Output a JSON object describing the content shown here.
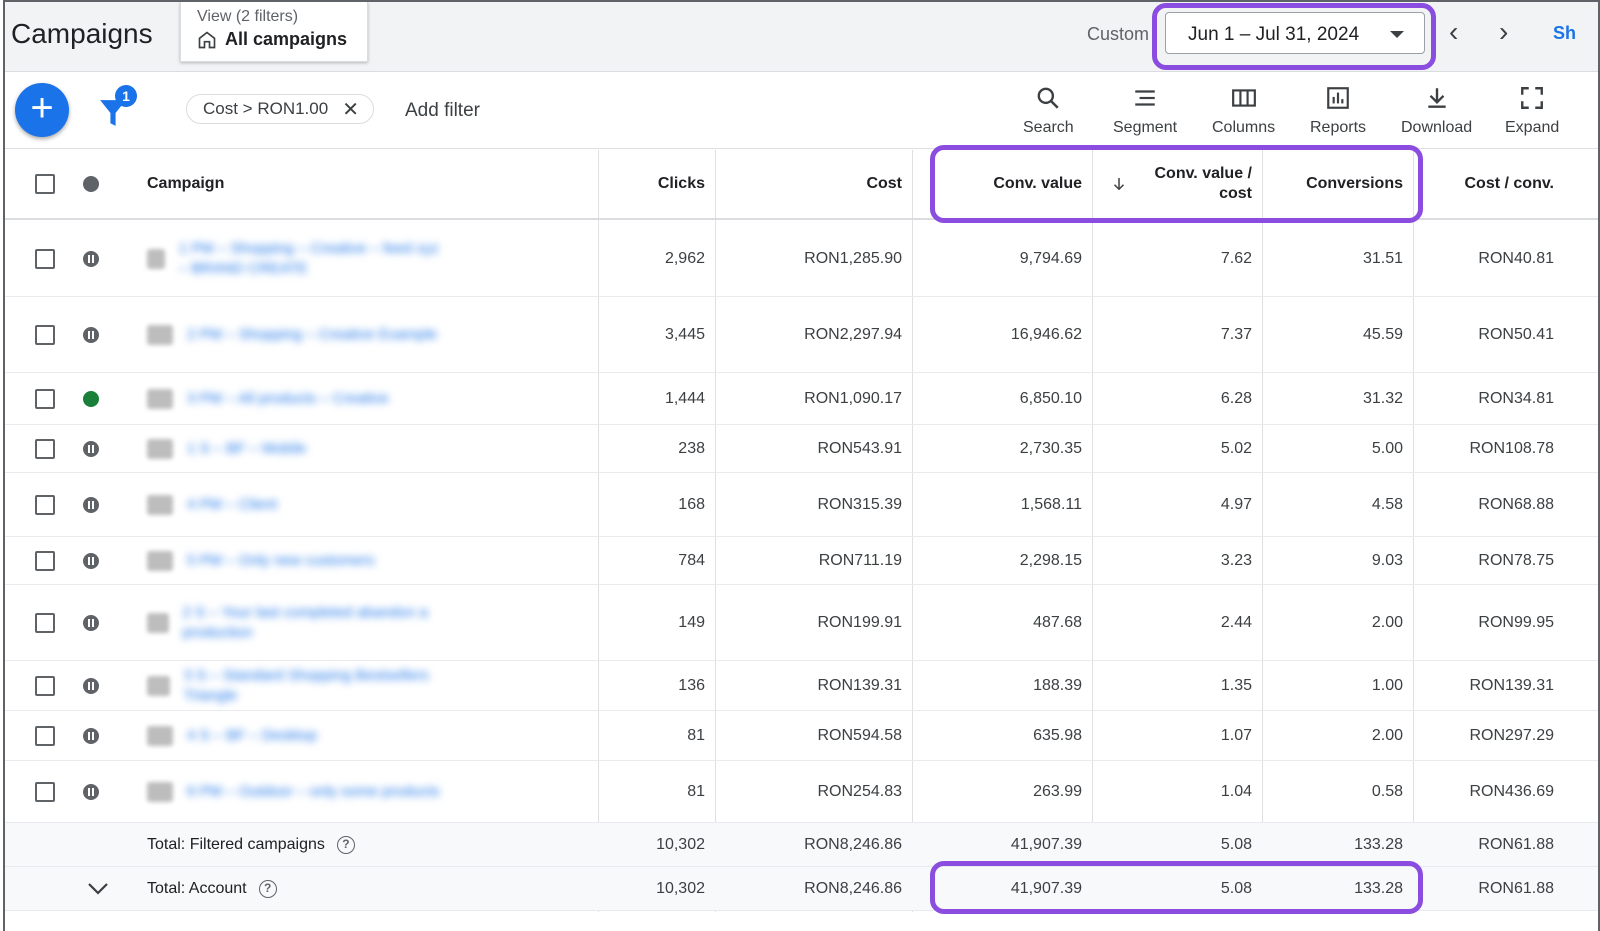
{
  "header": {
    "title": "Campaigns",
    "view_sub": "View (2 filters)",
    "view_main": "All campaigns",
    "custom_label": "Custom",
    "date_range": "Jun 1 – Jul 31, 2024",
    "share_cut": "Sh"
  },
  "toolbar": {
    "filter_count": "1",
    "chip_label": "Cost > RON1.00",
    "add_filter": "Add filter",
    "tools": {
      "search": "Search",
      "segment": "Segment",
      "columns": "Columns",
      "reports": "Reports",
      "download": "Download",
      "expand": "Expand"
    }
  },
  "table": {
    "columns": {
      "campaign": "Campaign",
      "clicks": "Clicks",
      "cost": "Cost",
      "conv_value": "Conv. value",
      "conv_value_cost_1": "Conv. value /",
      "conv_value_cost_2": "cost",
      "conversions": "Conversions",
      "cost_conv": "Cost / conv."
    },
    "rows": [
      {
        "name": "1 PM – Shopping – Creative – feed xyz – BRAND CREATE",
        "status": "paused",
        "clicks": "2,962",
        "cost": "RON1,285.90",
        "conv_value": "9,794.69",
        "conv_value_cost": "7.62",
        "conversions": "31.51",
        "cost_conv": "RON40.81"
      },
      {
        "name": "2 PM – Shopping – Creative Example",
        "status": "paused",
        "clicks": "3,445",
        "cost": "RON2,297.94",
        "conv_value": "16,946.62",
        "conv_value_cost": "7.37",
        "conversions": "45.59",
        "cost_conv": "RON50.41"
      },
      {
        "name": "3 PM – All products – Creative",
        "status": "enabled",
        "clicks": "1,444",
        "cost": "RON1,090.17",
        "conv_value": "6,850.10",
        "conv_value_cost": "6.28",
        "conversions": "31.32",
        "cost_conv": "RON34.81"
      },
      {
        "name": "1 S – BF – Mobile",
        "status": "paused",
        "clicks": "238",
        "cost": "RON543.91",
        "conv_value": "2,730.35",
        "conv_value_cost": "5.02",
        "conversions": "5.00",
        "cost_conv": "RON108.78"
      },
      {
        "name": "4 PM – Client",
        "status": "paused",
        "clicks": "168",
        "cost": "RON315.39",
        "conv_value": "1,568.11",
        "conv_value_cost": "4.97",
        "conversions": "4.58",
        "cost_conv": "RON68.88"
      },
      {
        "name": "5 PM – Only new customers",
        "status": "paused",
        "clicks": "784",
        "cost": "RON711.19",
        "conv_value": "2,298.15",
        "conv_value_cost": "3.23",
        "conversions": "9.03",
        "cost_conv": "RON78.75"
      },
      {
        "name": "2 S – Your last completed abandon a production",
        "status": "paused",
        "clicks": "149",
        "cost": "RON199.91",
        "conv_value": "487.68",
        "conv_value_cost": "2.44",
        "conversions": "2.00",
        "cost_conv": "RON99.95"
      },
      {
        "name": "3 S – Standard Shopping Bestsellers Triangle",
        "status": "paused",
        "clicks": "136",
        "cost": "RON139.31",
        "conv_value": "188.39",
        "conv_value_cost": "1.35",
        "conversions": "1.00",
        "cost_conv": "RON139.31"
      },
      {
        "name": "4 S – BF – Desktop",
        "status": "paused",
        "clicks": "81",
        "cost": "RON594.58",
        "conv_value": "635.98",
        "conv_value_cost": "1.07",
        "conversions": "2.00",
        "cost_conv": "RON297.29"
      },
      {
        "name": "6 PM – Outdoor – only some products",
        "status": "paused",
        "clicks": "81",
        "cost": "RON254.83",
        "conv_value": "263.99",
        "conv_value_cost": "1.04",
        "conversions": "0.58",
        "cost_conv": "RON436.69"
      }
    ],
    "totals": [
      {
        "label": "Total: Filtered campaigns",
        "clicks": "10,302",
        "cost": "RON8,246.86",
        "conv_value": "41,907.39",
        "conv_value_cost": "5.08",
        "conversions": "133.28",
        "cost_conv": "RON61.88"
      },
      {
        "label": "Total: Account",
        "clicks": "10,302",
        "cost": "RON8,246.86",
        "conv_value": "41,907.39",
        "conv_value_cost": "5.08",
        "conversions": "133.28",
        "cost_conv": "RON61.88"
      }
    ]
  },
  "colors": {
    "accent": "#1a73e8",
    "highlight": "#8a4de0",
    "enabled": "#188038",
    "paused": "#5f6368"
  }
}
